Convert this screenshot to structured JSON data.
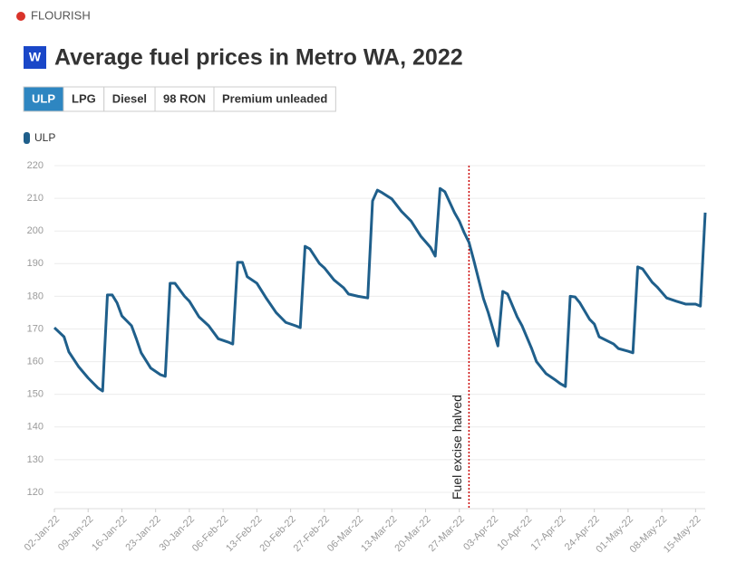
{
  "brand": "FLOURISH",
  "tabs": [
    "ULP",
    "LPG",
    "Diesel",
    "98 RON",
    "Premium unleaded"
  ],
  "active_tab": 0,
  "chart_data": {
    "type": "line",
    "title": "Average fuel prices in Metro WA, 2022",
    "x": [
      "02-Jan-22",
      "04-Jan-22",
      "05-Jan-22",
      "07-Jan-22",
      "09-Jan-22",
      "11-Jan-22",
      "12-Jan-22",
      "13-Jan-22",
      "14-Jan-22",
      "15-Jan-22",
      "16-Jan-22",
      "18-Jan-22",
      "19-Jan-22",
      "20-Jan-22",
      "22-Jan-22",
      "24-Jan-22",
      "25-Jan-22",
      "26-Jan-22",
      "27-Jan-22",
      "29-Jan-22",
      "30-Jan-22",
      "01-Feb-22",
      "03-Feb-22",
      "05-Feb-22",
      "07-Feb-22",
      "08-Feb-22",
      "09-Feb-22",
      "10-Feb-22",
      "11-Feb-22",
      "13-Feb-22",
      "15-Feb-22",
      "17-Feb-22",
      "19-Feb-22",
      "21-Feb-22",
      "22-Feb-22",
      "23-Feb-22",
      "24-Feb-22",
      "26-Feb-22",
      "27-Feb-22",
      "01-Mar-22",
      "03-Mar-22",
      "04-Mar-22",
      "06-Mar-22",
      "08-Mar-22",
      "09-Mar-22",
      "10-Mar-22",
      "11-Mar-22",
      "13-Mar-22",
      "15-Mar-22",
      "17-Mar-22",
      "19-Mar-22",
      "21-Mar-22",
      "22-Mar-22",
      "23-Mar-22",
      "24-Mar-22",
      "26-Mar-22",
      "27-Mar-22",
      "28-Mar-22",
      "29-Mar-22",
      "30-Mar-22",
      "01-Apr-22",
      "02-Apr-22",
      "04-Apr-22",
      "05-Apr-22",
      "06-Apr-22",
      "08-Apr-22",
      "09-Apr-22",
      "11-Apr-22",
      "12-Apr-22",
      "14-Apr-22",
      "16-Apr-22",
      "17-Apr-22",
      "18-Apr-22",
      "19-Apr-22",
      "20-Apr-22",
      "21-Apr-22",
      "23-Apr-22",
      "24-Apr-22",
      "25-Apr-22",
      "28-Apr-22",
      "29-Apr-22",
      "01-May-22",
      "02-May-22",
      "03-May-22",
      "04-May-22",
      "06-May-22",
      "07-May-22",
      "09-May-22",
      "11-May-22",
      "13-May-22",
      "15-May-22",
      "16-May-22",
      "17-May-22"
    ],
    "series": [
      {
        "name": "ULP",
        "color": "#1f5f8b",
        "values": [
          170.4,
          167.6,
          163,
          158.5,
          155,
          152,
          151,
          180.4,
          180.4,
          178,
          174,
          171,
          167,
          162.7,
          158,
          156,
          155.5,
          184,
          184,
          180,
          178.5,
          173.7,
          171,
          167,
          166,
          165.4,
          190.4,
          190.4,
          186,
          184,
          179.3,
          175,
          172,
          171,
          170.4,
          195.3,
          194.5,
          190,
          188.7,
          185,
          182.6,
          180.7,
          180,
          179.5,
          209.2,
          212.5,
          211.7,
          209.8,
          206,
          203,
          198.4,
          195,
          192.3,
          213,
          212,
          205.6,
          203,
          199.5,
          196.5,
          191,
          179.3,
          175,
          164.8,
          181.5,
          180.7,
          173.7,
          171,
          164,
          160,
          156.3,
          154.3,
          153.2,
          152.4,
          180,
          179.8,
          178,
          173,
          171.5,
          167.6,
          165.4,
          164,
          163.2,
          162.7,
          189,
          188.4,
          184.3,
          182.9,
          179.5,
          178.5,
          177.6,
          177.6,
          177,
          205.6
        ]
      }
    ],
    "xlim": [
      "02-Jan-22",
      "17-May-22"
    ],
    "xticks": [
      "02-Jan-22",
      "09-Jan-22",
      "16-Jan-22",
      "23-Jan-22",
      "30-Jan-22",
      "06-Feb-22",
      "13-Feb-22",
      "20-Feb-22",
      "27-Feb-22",
      "06-Mar-22",
      "13-Mar-22",
      "20-Mar-22",
      "27-Mar-22",
      "03-Apr-22",
      "10-Apr-22",
      "17-Apr-22",
      "24-Apr-22",
      "01-May-22",
      "08-May-22",
      "15-May-22"
    ],
    "ylim": [
      115,
      220
    ],
    "yticks": [
      120,
      130,
      140,
      150,
      160,
      170,
      180,
      190,
      200,
      210,
      220
    ],
    "grid": true,
    "annotations": [
      {
        "x": "29-Mar-22",
        "text": "Fuel excise halved",
        "color": "#cc0000"
      }
    ]
  }
}
